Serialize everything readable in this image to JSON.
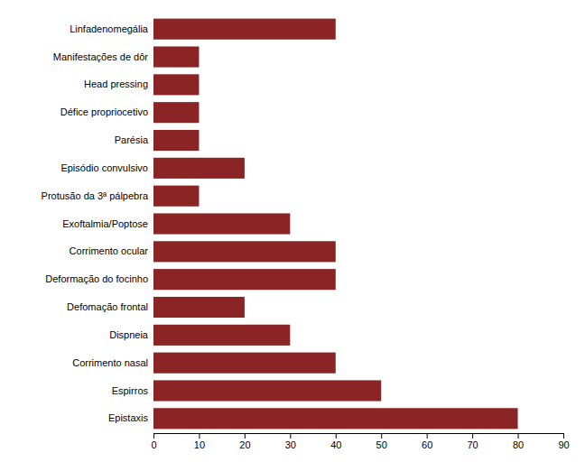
{
  "chart_data": {
    "type": "bar",
    "orientation": "horizontal",
    "categories": [
      "Epistaxis",
      "Espirros",
      "Corrimento nasal",
      "Dispneia",
      "Defomação frontal",
      "Deformação do focinho",
      "Corrimento ocular",
      "Exoftalmia/Poptose",
      "Protusão da 3ª pálpebra",
      "Episódio convulsivo",
      "Parésia",
      "Défice propriocetivo",
      "Head pressing",
      "Manifestações de dôr",
      "Linfadenomegália"
    ],
    "values": [
      80,
      50,
      40,
      30,
      20,
      40,
      40,
      30,
      10,
      20,
      10,
      10,
      10,
      10,
      40
    ],
    "color": "#8B2525",
    "xlim": [
      0,
      90
    ],
    "xticks": [
      0,
      10,
      20,
      30,
      40,
      50,
      60,
      70,
      80,
      90
    ],
    "grid": false
  }
}
